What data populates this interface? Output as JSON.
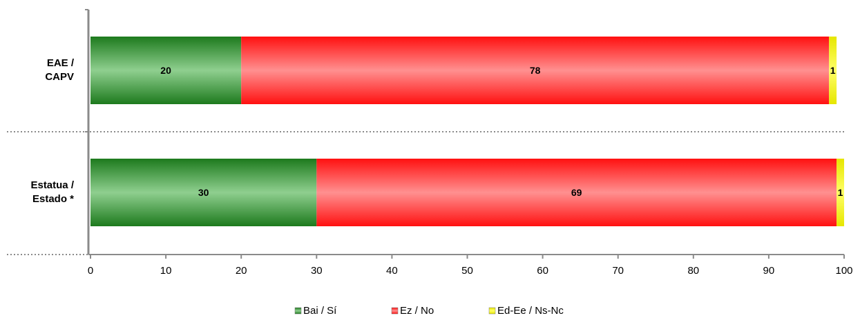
{
  "chart_data": {
    "type": "bar",
    "orientation": "horizontal",
    "stacked": true,
    "categories": [
      "EAE / CAPV",
      "Estatua / Estado *"
    ],
    "category_lines": [
      [
        "EAE /",
        "CAPV"
      ],
      [
        "Estatua /",
        "Estado *"
      ]
    ],
    "series": [
      {
        "name": "Bai / Sí",
        "values": [
          20,
          30
        ],
        "color": "#2e9a2e"
      },
      {
        "name": "Ez / No",
        "values": [
          78,
          69
        ],
        "color": "#ff2020"
      },
      {
        "name": "Ed-Ee / Ns-Nc",
        "values": [
          1,
          1
        ],
        "color": "#ffff00"
      }
    ],
    "xlim": [
      0,
      100
    ],
    "xticks": [
      "0",
      "10",
      "20",
      "30",
      "40",
      "50",
      "60",
      "70",
      "80",
      "90",
      "100"
    ],
    "grid": false,
    "legend_position": "bottom"
  }
}
